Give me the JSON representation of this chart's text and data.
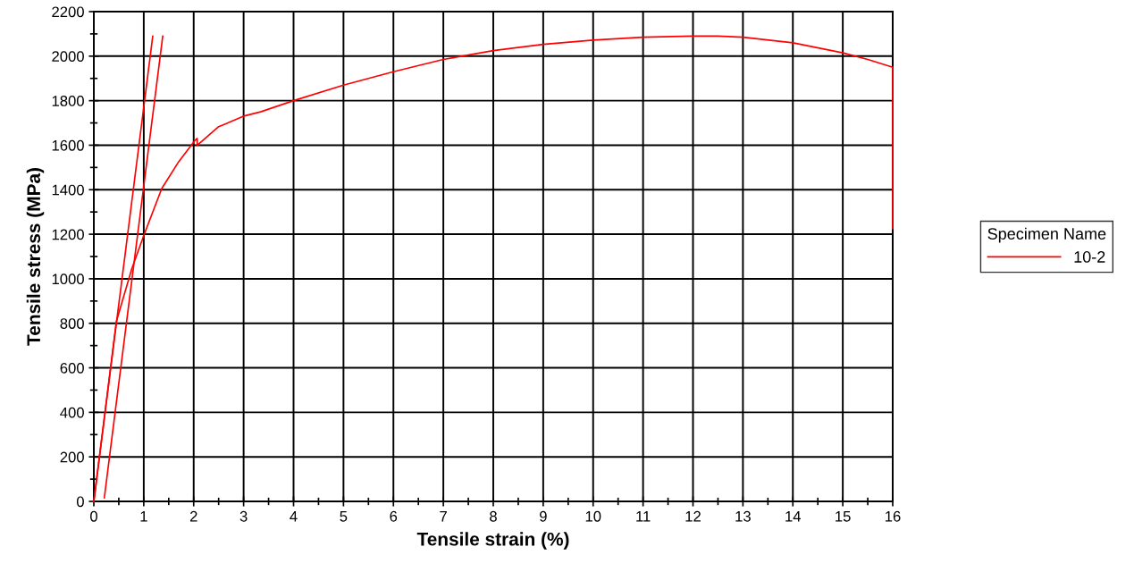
{
  "chart_data": {
    "type": "line",
    "xlabel": "Tensile strain (%)",
    "ylabel": "Tensile stress (MPa)",
    "legend_title": "Specimen Name",
    "legend": "right",
    "grid": true,
    "xlim": [
      0,
      16
    ],
    "ylim": [
      0,
      2200
    ],
    "xticks": [
      0,
      {
        "value": 0.5,
        "label": null
      },
      1,
      {
        "value": 1.5,
        "label": null
      },
      2,
      {
        "value": 2.5,
        "label": null
      },
      3,
      {
        "value": 3.5,
        "label": null
      },
      4,
      {
        "value": 4.5,
        "label": null
      },
      5,
      {
        "value": 5.5,
        "label": null
      },
      6,
      {
        "value": 6.5,
        "label": null
      },
      7,
      {
        "value": 7.5,
        "label": null
      },
      8,
      {
        "value": 8.5,
        "label": null
      },
      9,
      {
        "value": 9.5,
        "label": null
      },
      10,
      {
        "value": 10.5,
        "label": null
      },
      11,
      {
        "value": 11.5,
        "label": null
      },
      12,
      {
        "value": 12.5,
        "label": null
      },
      13,
      {
        "value": 13.5,
        "label": null
      },
      14,
      {
        "value": 14.5,
        "label": null
      },
      15,
      {
        "value": 15.5,
        "label": null
      },
      16
    ],
    "yticks": [
      0,
      {
        "value": 100,
        "label": null
      },
      200,
      {
        "value": 300,
        "label": null
      },
      400,
      {
        "value": 500,
        "label": null
      },
      600,
      {
        "value": 700,
        "label": null
      },
      800,
      {
        "value": 900,
        "label": null
      },
      1000,
      {
        "value": 1100,
        "label": null
      },
      1200,
      {
        "value": 1300,
        "label": null
      },
      1400,
      {
        "value": 1500,
        "label": null
      },
      1600,
      {
        "value": 1700,
        "label": null
      },
      1800,
      {
        "value": 1900,
        "label": null
      },
      2000,
      {
        "value": 2100,
        "label": null
      },
      2200
    ],
    "series": [
      {
        "name": "10-2",
        "color": "#ff0000",
        "x": [
          0,
          0.45,
          0.76,
          1.01,
          1.36,
          1.7,
          2.02,
          2.07,
          2.07,
          2.49,
          3.02,
          3.34,
          4,
          5,
          6,
          7,
          8,
          9,
          10,
          11,
          12,
          12.5,
          13,
          14,
          15,
          15.5,
          16,
          16
        ],
        "values": [
          0,
          807,
          1045,
          1200,
          1405,
          1526,
          1620,
          1630,
          1599,
          1682,
          1732,
          1750,
          1800,
          1870,
          1930,
          1985,
          2025,
          2053,
          2072,
          2085,
          2090,
          2090,
          2085,
          2060,
          2015,
          1985,
          1950,
          1226
        ]
      },
      {
        "color": "#ff0000",
        "x": [
          0,
          1.18
        ],
        "values": [
          0,
          2090
        ]
      },
      {
        "color": "#ff0000",
        "x": [
          0.21,
          1.38
        ],
        "values": [
          16,
          2090
        ]
      }
    ]
  }
}
